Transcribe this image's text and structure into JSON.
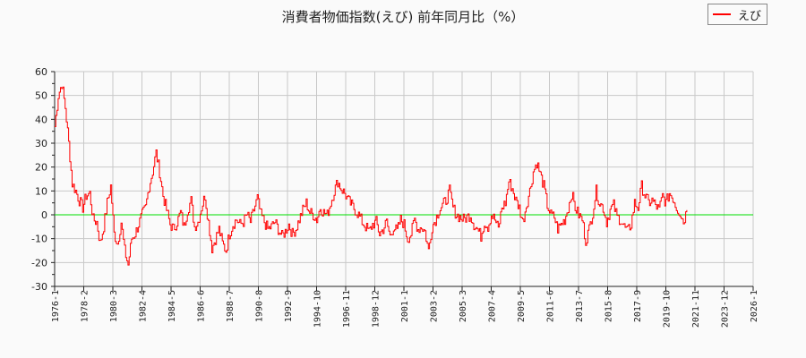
{
  "chart_data": {
    "type": "line",
    "title": "消費者物価指数(えび) 前年同月比（%）",
    "xlabel": "",
    "ylabel": "",
    "ylim": [
      -30,
      60
    ],
    "yticks": [
      60,
      50,
      40,
      30,
      20,
      10,
      0,
      -10,
      -20,
      -30
    ],
    "xticks": [
      "1976-1",
      "1978-2",
      "1980-3",
      "1982-4",
      "1984-5",
      "1986-6",
      "1988-7",
      "1990-8",
      "1992-9",
      "1994-10",
      "1996-11",
      "1998-12",
      "2001-1",
      "2003-2",
      "2005-3",
      "2007-4",
      "2009-5",
      "2011-6",
      "2013-7",
      "2015-8",
      "2017-9",
      "2019-10",
      "2021-11",
      "2023-12",
      "2026-1"
    ],
    "grid": true,
    "legend_position": "top-right",
    "reference_line": {
      "y": 0,
      "color": "#00dd00"
    },
    "series": [
      {
        "name": "えび",
        "color": "#ff0000",
        "x_start": "1976-01",
        "step_months": 3,
        "values": [
          37,
          50,
          55,
          45,
          30,
          13,
          10,
          6,
          3,
          8,
          9,
          -2,
          -3,
          -12,
          -5,
          5,
          12,
          -8,
          -12,
          -3,
          -15,
          -21,
          -10,
          -8,
          -4,
          0,
          3,
          12,
          18,
          26,
          18,
          8,
          2,
          -4,
          -6,
          -3,
          1,
          -5,
          2,
          6,
          -5,
          -3,
          3,
          8,
          -3,
          -14,
          -10,
          -6,
          -12,
          -15,
          -8,
          -4,
          -2,
          -4,
          -3,
          0,
          -3,
          2,
          7,
          0,
          -3,
          -6,
          -5,
          -3,
          -6,
          -9,
          -7,
          -4,
          -8,
          -6,
          -2,
          2,
          5,
          1,
          0,
          -2,
          3,
          1,
          0,
          5,
          10,
          14,
          11,
          9,
          6,
          4,
          2,
          0,
          -3,
          -5,
          -7,
          -4,
          -3,
          -8,
          -6,
          -3,
          -9,
          -5,
          -7,
          -2,
          -4,
          -10,
          -8,
          -2,
          -6,
          -5,
          -7,
          -15,
          -5,
          -2,
          2,
          4,
          6,
          10,
          3,
          0,
          -1,
          -2,
          -1,
          0,
          -4,
          -6,
          -9,
          -3,
          -5,
          0,
          -2,
          -6,
          3,
          5,
          14,
          11,
          6,
          3,
          -3,
          4,
          10,
          18,
          22,
          17,
          12,
          4,
          0,
          -1,
          -6,
          -4,
          -2,
          3,
          9,
          3,
          0,
          -2,
          -11,
          -6,
          1,
          10,
          5,
          3,
          -3,
          2,
          4,
          -1,
          -2,
          -5,
          -7,
          -4,
          5,
          3,
          12,
          8,
          5,
          6,
          4,
          2,
          8,
          5,
          9,
          7,
          3,
          1,
          -3,
          2
        ]
      }
    ]
  },
  "title": "消費者物価指数(えび) 前年同月比（%）",
  "legend": {
    "label": "えび",
    "color": "#ff0000"
  }
}
